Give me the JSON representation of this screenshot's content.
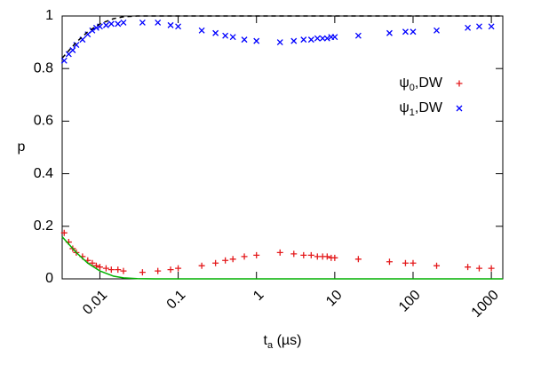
{
  "chart_data": {
    "type": "scatter",
    "xlabel": "ta (µs)",
    "ylabel": "p",
    "xscale": "log",
    "xlim": [
      0.0033,
      1400
    ],
    "ylim": [
      0,
      1
    ],
    "xticks": [
      0.01,
      0.1,
      1,
      10,
      100,
      1000
    ],
    "yticks": [
      0,
      0.2,
      0.4,
      0.6,
      0.8,
      1
    ],
    "grid": false,
    "legend": "upper right",
    "series": [
      {
        "name": "ψ0,DW",
        "color": "#e41a1c",
        "marker": "plus",
        "x": [
          0.0035,
          0.004,
          0.0045,
          0.005,
          0.006,
          0.007,
          0.008,
          0.009,
          0.01,
          0.012,
          0.014,
          0.017,
          0.02,
          0.035,
          0.055,
          0.08,
          0.1,
          0.2,
          0.3,
          0.4,
          0.5,
          0.7,
          1,
          2,
          3,
          4,
          5,
          6,
          7,
          8,
          9,
          10,
          20,
          50,
          80,
          100,
          200,
          500,
          700,
          1000
        ],
        "values": [
          0.175,
          0.14,
          0.115,
          0.1,
          0.085,
          0.07,
          0.06,
          0.05,
          0.045,
          0.04,
          0.035,
          0.035,
          0.03,
          0.025,
          0.03,
          0.035,
          0.04,
          0.05,
          0.06,
          0.07,
          0.075,
          0.085,
          0.09,
          0.1,
          0.095,
          0.09,
          0.09,
          0.085,
          0.085,
          0.085,
          0.08,
          0.08,
          0.075,
          0.065,
          0.06,
          0.06,
          0.05,
          0.045,
          0.04,
          0.04
        ]
      },
      {
        "name": "ψ1,DW",
        "color": "#0000ff",
        "marker": "cross",
        "x": [
          0.0035,
          0.004,
          0.0045,
          0.005,
          0.006,
          0.007,
          0.008,
          0.009,
          0.01,
          0.012,
          0.014,
          0.017,
          0.02,
          0.035,
          0.055,
          0.08,
          0.1,
          0.2,
          0.3,
          0.4,
          0.5,
          0.7,
          1,
          2,
          3,
          4,
          5,
          6,
          7,
          8,
          9,
          10,
          20,
          50,
          80,
          100,
          200,
          500,
          700,
          1000
        ],
        "values": [
          0.83,
          0.855,
          0.87,
          0.89,
          0.91,
          0.93,
          0.945,
          0.955,
          0.96,
          0.965,
          0.97,
          0.97,
          0.975,
          0.975,
          0.975,
          0.965,
          0.96,
          0.945,
          0.935,
          0.925,
          0.92,
          0.91,
          0.905,
          0.9,
          0.905,
          0.91,
          0.91,
          0.915,
          0.915,
          0.915,
          0.92,
          0.92,
          0.925,
          0.935,
          0.94,
          0.94,
          0.945,
          0.955,
          0.96,
          0.96
        ]
      },
      {
        "color": "#00b000",
        "marker": "line",
        "x": [
          0.0033,
          0.005,
          0.007,
          0.01,
          0.015,
          0.02,
          0.03,
          0.05,
          1400
        ],
        "values": [
          0.16,
          0.1,
          0.06,
          0.03,
          0.01,
          0.004,
          0.001,
          0,
          0
        ]
      },
      {
        "color": "#000000",
        "marker": "dashed",
        "x": [
          0.0033,
          0.005,
          0.007,
          0.01,
          0.015,
          0.02,
          0.03,
          1400
        ],
        "values": [
          0.84,
          0.9,
          0.94,
          0.97,
          0.99,
          0.997,
          1,
          1
        ]
      }
    ]
  }
}
